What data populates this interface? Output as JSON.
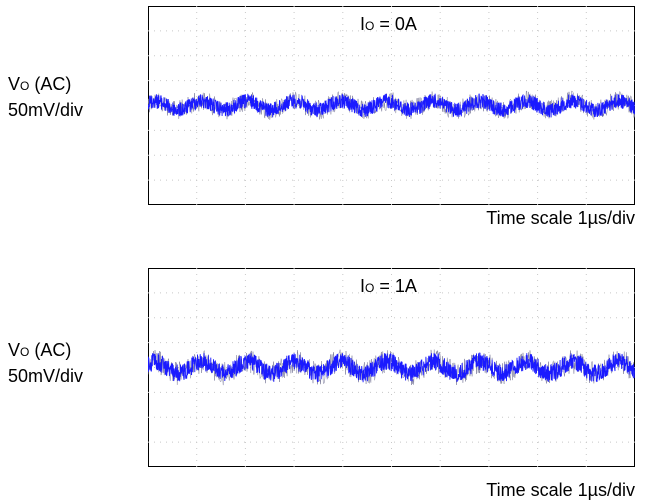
{
  "chart_data": [
    {
      "type": "line",
      "title": "",
      "annotation": {
        "main": "I",
        "sub": "O",
        "rest": " = 0A"
      },
      "ylabel": {
        "main": "V",
        "sub": "O",
        "rest": " (AC)",
        "line2": "50mV/div"
      },
      "xlabel": "Time scale 1µs/div",
      "grid": true,
      "divisions": {
        "x": 10,
        "y": 8
      },
      "series": [
        {
          "color": "#1a1aff",
          "center_div": 4.0,
          "ripple_amplitude_mV": 9,
          "ripple_cycles_on_screen": 10.5,
          "noise_band_mV": 30
        }
      ]
    },
    {
      "type": "line",
      "title": "",
      "annotation": {
        "main": "I",
        "sub": "O",
        "rest": " = 1A"
      },
      "ylabel": {
        "main": "V",
        "sub": "O",
        "rest": " (AC)",
        "line2": "50mV/div"
      },
      "xlabel": "Time scale 1µs/div",
      "grid": true,
      "divisions": {
        "x": 10,
        "y": 8
      },
      "series": [
        {
          "color": "#1a1aff",
          "center_div": 4.0,
          "ripple_amplitude_mV": 12,
          "ripple_cycles_on_screen": 10.5,
          "noise_band_mV": 36
        }
      ]
    }
  ]
}
